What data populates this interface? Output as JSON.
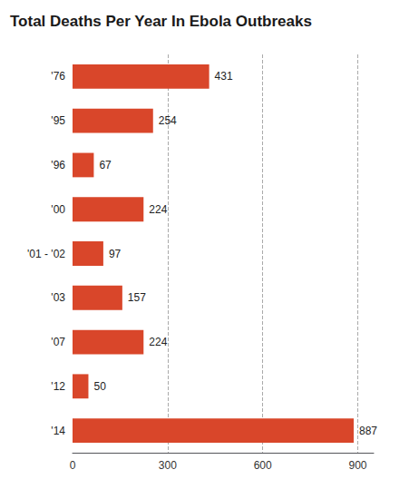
{
  "chart_data": {
    "type": "bar",
    "title": "Total Deaths Per Year In Ebola Outbreaks",
    "categories": [
      "'76",
      "'95",
      "'96",
      "'00",
      "'01 - '02",
      "'03",
      "'07",
      "'12",
      "'14"
    ],
    "values": [
      431,
      254,
      67,
      224,
      97,
      157,
      224,
      50,
      887
    ],
    "color": "#d9462a",
    "orientation": "horizontal",
    "xlim": [
      0,
      950
    ],
    "xticks": [
      0,
      300,
      600,
      900
    ],
    "grid": true,
    "data_labels": true
  }
}
